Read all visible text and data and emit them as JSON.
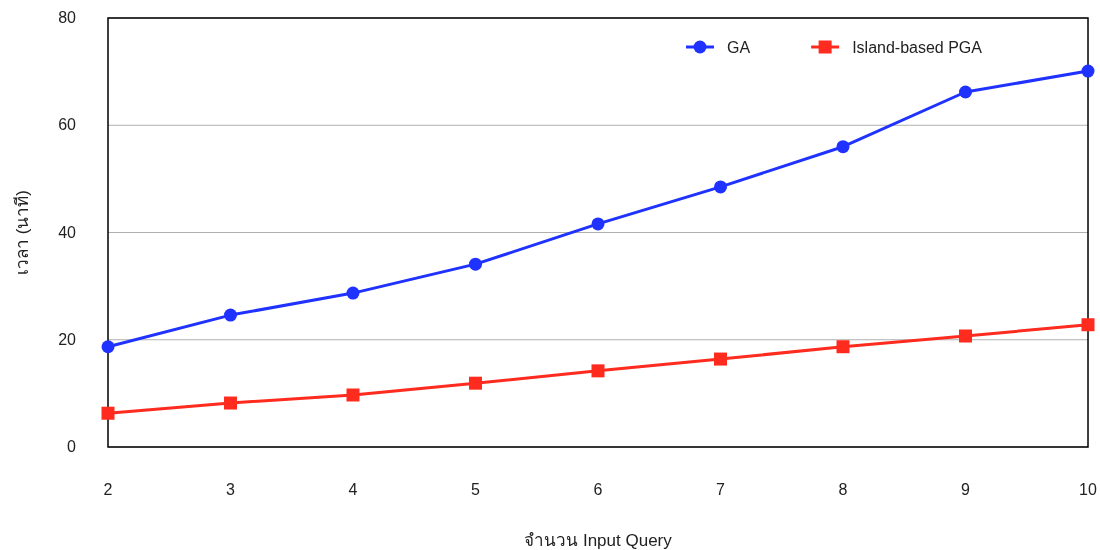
{
  "chart_data": {
    "type": "line",
    "xlabel": "จำนวน Input Query",
    "ylabel": "เวลา (นาที)",
    "x": [
      2,
      3,
      4,
      5,
      6,
      7,
      8,
      9,
      10
    ],
    "xlim": [
      2,
      10
    ],
    "xticks": [
      2,
      3,
      4,
      5,
      6,
      7,
      8,
      9,
      10
    ],
    "ylim": [
      0,
      80
    ],
    "yticks": [
      0,
      20,
      40,
      60,
      80
    ],
    "grid": "y",
    "legend": "top right",
    "series": [
      {
        "name": "GA",
        "color": "#1f32ff",
        "marker": "circle",
        "values": [
          18.7,
          24.6,
          28.7,
          34.1,
          41.6,
          48.5,
          56.0,
          66.2,
          70.1
        ]
      },
      {
        "name": "Island-based PGA",
        "color": "#ff2b1f",
        "marker": "square",
        "values": [
          6.3,
          8.2,
          9.7,
          11.9,
          14.2,
          16.4,
          18.7,
          20.7,
          22.8
        ]
      }
    ]
  }
}
